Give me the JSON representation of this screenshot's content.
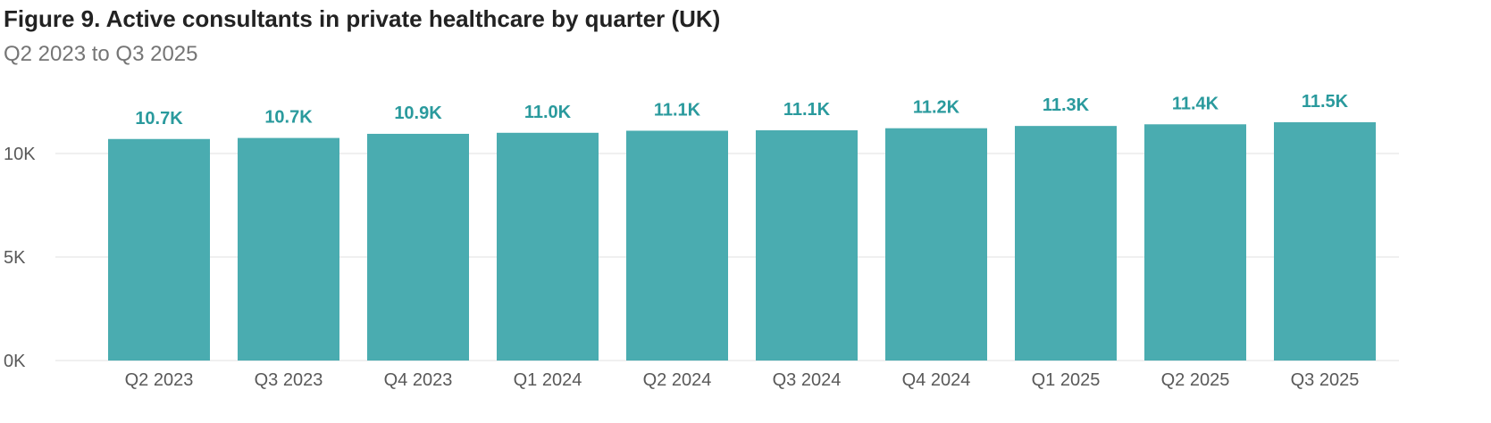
{
  "title": "Figure 9. Active consultants in private healthcare by quarter (UK)",
  "subtitle": "Q2 2023 to Q3 2025",
  "colors": {
    "bar": "#4aacb0",
    "label": "#2a9a9d",
    "grid": "#ececec"
  },
  "chart_data": {
    "type": "bar",
    "title": "Figure 9. Active consultants in private healthcare by quarter (UK)",
    "subtitle": "Q2 2023 to Q3 2025",
    "xlabel": "",
    "ylabel": "",
    "categories": [
      "Q2 2023",
      "Q3 2023",
      "Q4 2023",
      "Q1 2024",
      "Q2 2024",
      "Q3 2024",
      "Q4 2024",
      "Q1 2025",
      "Q2 2025",
      "Q3 2025"
    ],
    "values": [
      10700,
      10750,
      10950,
      11000,
      11100,
      11120,
      11220,
      11330,
      11410,
      11510
    ],
    "data_labels": [
      "10.7K",
      "10.7K",
      "10.9K",
      "11.0K",
      "11.1K",
      "11.1K",
      "11.2K",
      "11.3K",
      "11.4K",
      "11.5K"
    ],
    "ylim": [
      0,
      11500
    ],
    "yticks": [
      0,
      5000,
      10000
    ],
    "ytick_labels": [
      "0K",
      "5K",
      "10K"
    ],
    "grid": true,
    "legend": "none"
  }
}
